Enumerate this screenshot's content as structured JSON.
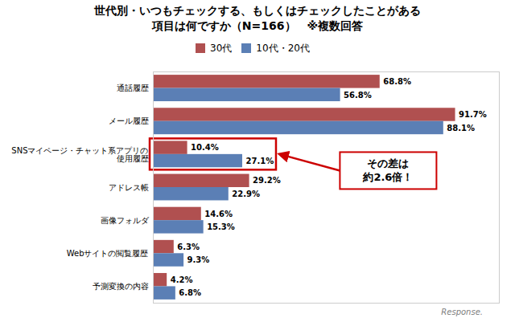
{
  "chart_data": {
    "type": "bar",
    "orientation": "horizontal",
    "title": "世代別・いつもチェックする、もしくはチェックしたことがある\n項目は何ですか（N=166）　※複数回答",
    "caption": "Response.",
    "categories": [
      "予測変換の内容",
      "Webサイトの閲覧履歴",
      "画像フォルダ",
      "アドレス帳",
      "SNSマイページ・チャット系アプリの\n使用履歴",
      "メール履歴",
      "通話履歴"
    ],
    "series": [
      {
        "name": "30代",
        "color": "#b05050",
        "values": [
          4.2,
          6.3,
          14.6,
          29.2,
          10.4,
          91.7,
          68.8
        ],
        "value_labels": [
          "4.2%",
          "6.3%",
          "14.6%",
          "29.2%",
          "10.4%",
          "91.7%",
          "68.8%"
        ]
      },
      {
        "name": "10代・20代",
        "color": "#5b7fb5",
        "values": [
          6.8,
          9.3,
          15.3,
          22.9,
          27.1,
          88.1,
          56.8
        ],
        "value_labels": [
          "6.8%",
          "9.3%",
          "15.3%",
          "22.9%",
          "27.1%",
          "88.1%",
          "56.8%"
        ]
      }
    ],
    "xlim": [
      0,
      105
    ],
    "data_labels": true,
    "tick_labels": "y",
    "grid": false,
    "legend": "top",
    "annotations": [
      {
        "text": "その差は\n約2.6倍！",
        "color": "#cc0000"
      }
    ]
  }
}
